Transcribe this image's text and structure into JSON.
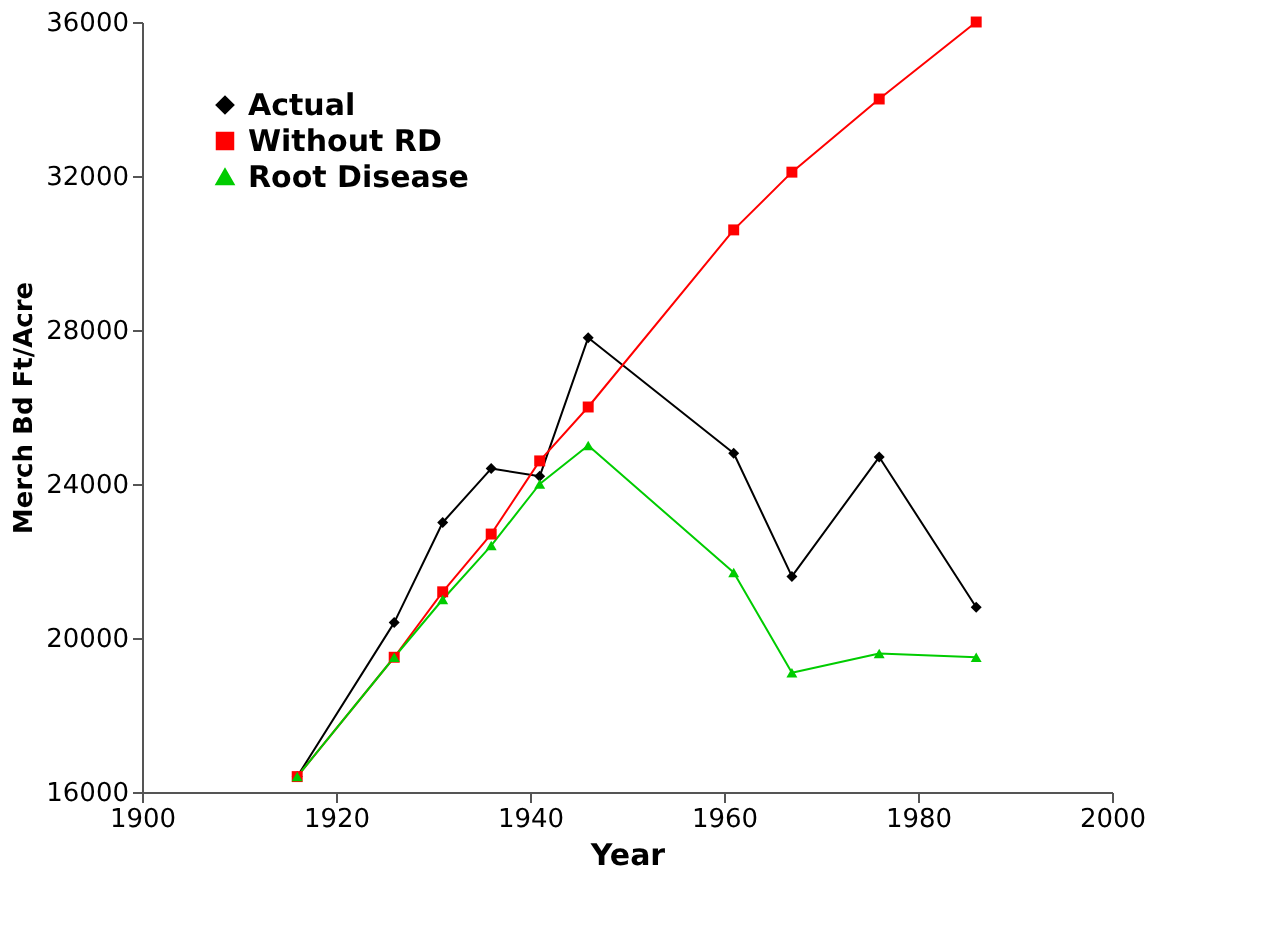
{
  "chart_data": {
    "type": "line",
    "xlabel": "Year",
    "ylabel": "Merch Bd Ft/Acre",
    "x": [
      1916,
      1926,
      1931,
      1936,
      1941,
      1946,
      1961,
      1967,
      1976,
      1986
    ],
    "series": [
      {
        "name": "Actual",
        "color": "#000000",
        "marker": "diamond",
        "values": [
          16400,
          20400,
          23000,
          24400,
          24200,
          27800,
          24800,
          21600,
          24700,
          20800
        ]
      },
      {
        "name": "Without RD",
        "color": "#ff0000",
        "marker": "square",
        "values": [
          16400,
          19500,
          21200,
          22700,
          24600,
          26000,
          30600,
          32100,
          34000,
          36000
        ]
      },
      {
        "name": "Root Disease",
        "color": "#00cc00",
        "marker": "triangle",
        "values": [
          16400,
          19500,
          21000,
          22400,
          24000,
          25000,
          21700,
          19100,
          19600,
          19500
        ]
      }
    ],
    "xlim": [
      1900,
      2000
    ],
    "xticks": [
      1900,
      1920,
      1940,
      1960,
      1980,
      2000
    ],
    "ylim": [
      16000,
      36000
    ],
    "yticks": [
      16000,
      20000,
      24000,
      28000,
      32000,
      36000
    ],
    "grid": false,
    "legend": "top left",
    "line_style": "solid"
  }
}
